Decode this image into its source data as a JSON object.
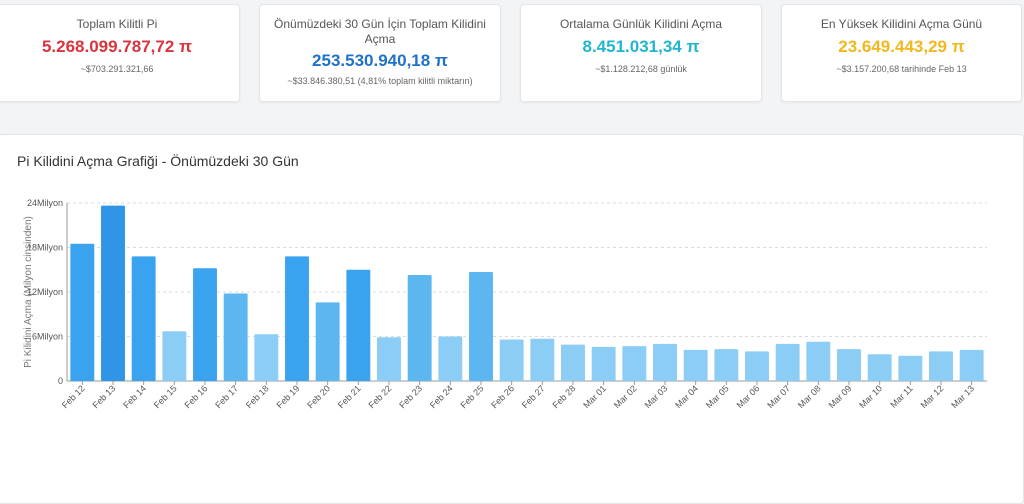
{
  "cards": [
    {
      "title": "Toplam Kilitli Pi",
      "value": "5.268.099.787,72 π",
      "sub": "~$703.291.321,66",
      "color": "#d9353f"
    },
    {
      "title": "Önümüzdeki 30 Gün İçin Toplam Kilidini Açma",
      "value": "253.530.940,18 π",
      "sub": "~$33.846.380,51 (4,81% toplam kilitli miktarın)",
      "color": "#1f72c8"
    },
    {
      "title": "Ortalama Günlük Kilidini Açma",
      "value": "8.451.031,34 π",
      "sub": "~$1.128.212,68 günlük",
      "color": "#22b5cf"
    },
    {
      "title": "En Yüksek Kilidini Açma Günü",
      "value": "23.649.443,29 π",
      "sub": "~$3.157.200,68 tarihinde Feb 13",
      "color": "#f2b81f"
    }
  ],
  "panel": {
    "title": "Pi Kilidini Açma Grafiği - Önümüzdeki 30 Gün"
  },
  "chart_data": {
    "type": "bar",
    "title": "",
    "xlabel": "",
    "ylabel": "Pi Kilidini Açma (Milyon cinsinden)",
    "ylim": [
      0,
      24
    ],
    "yticks": [
      0,
      6,
      12,
      18,
      24
    ],
    "ytick_labels": [
      "0",
      "6Milyon",
      "12Milyon",
      "18Milyon",
      "24Milyon"
    ],
    "grid": true,
    "legend": "none",
    "categories": [
      "Feb 12",
      "Feb 13",
      "Feb 14",
      "Feb 15",
      "Feb 16",
      "Feb 17",
      "Feb 18",
      "Feb 19",
      "Feb 20",
      "Feb 21",
      "Feb 22",
      "Feb 23",
      "Feb 24",
      "Feb 25",
      "Feb 26",
      "Feb 27",
      "Feb 28",
      "Mar 01",
      "Mar 02",
      "Mar 03",
      "Mar 04",
      "Mar 05",
      "Mar 06",
      "Mar 07",
      "Mar 08",
      "Mar 09",
      "Mar 10",
      "Mar 11",
      "Mar 12",
      "Mar 13"
    ],
    "values": [
      18.5,
      23.65,
      16.8,
      6.7,
      15.2,
      11.8,
      6.3,
      16.8,
      10.6,
      15.0,
      5.9,
      14.3,
      6.0,
      14.7,
      5.6,
      5.7,
      4.9,
      4.6,
      4.7,
      5.0,
      4.2,
      4.3,
      4.0,
      5.0,
      5.3,
      4.3,
      3.6,
      3.4,
      4.0,
      4.2
    ],
    "colors": {
      "high": "#3aa3ef",
      "mid": "#5cb6f0",
      "low": "#8ccdf5",
      "peak": "#3095e6"
    }
  }
}
